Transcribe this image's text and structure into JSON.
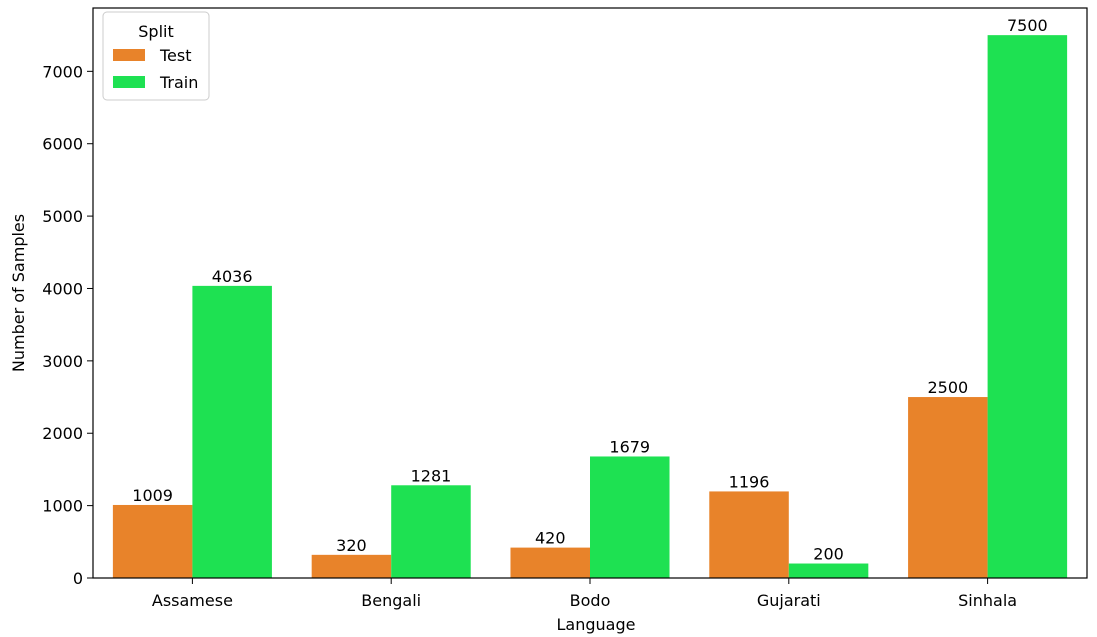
{
  "chart_data": {
    "type": "bar",
    "title": "",
    "xlabel": "Language",
    "ylabel": "Number of Samples",
    "categories": [
      "Assamese",
      "Bengali",
      "Bodo",
      "Gujarati",
      "Sinhala"
    ],
    "series": [
      {
        "name": "Test",
        "color": "#e8832a",
        "values": [
          1009,
          320,
          420,
          1196,
          2500
        ]
      },
      {
        "name": "Train",
        "color": "#1ee152",
        "values": [
          4036,
          1281,
          1679,
          200,
          7500
        ]
      }
    ],
    "ylim": [
      0,
      7875
    ],
    "yticks": [
      0,
      1000,
      2000,
      3000,
      4000,
      5000,
      6000,
      7000
    ],
    "grid": false,
    "legend": {
      "title": "Split",
      "placement": "top-left"
    },
    "data_labels": true
  }
}
